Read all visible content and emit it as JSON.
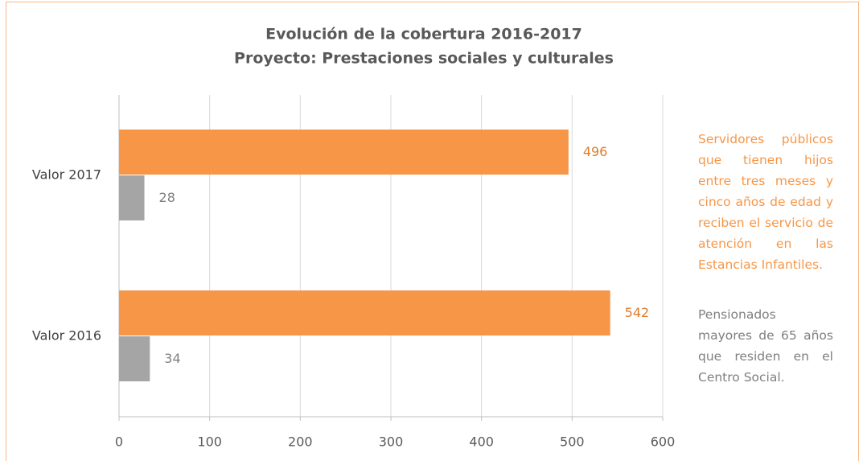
{
  "chart_data": {
    "type": "bar",
    "orientation": "horizontal",
    "title": "Evolución de la cobertura 2016-2017",
    "subtitle": "Proyecto: Prestaciones sociales y culturales",
    "categories": [
      "Valor 2017",
      "Valor 2016"
    ],
    "series": [
      {
        "name": "Servidores públicos que tienen hijos entre tres meses y cinco años de edad y reciben el servicio de atención en las Estancias Infantiles.",
        "color": "#f79646",
        "label_color": "#e07b2a",
        "values": [
          496,
          542
        ]
      },
      {
        "name": "Pensionados mayores de 65 años que residen en el Centro Social.",
        "color": "#a5a5a5",
        "label_color": "#7f7f7f",
        "values": [
          28,
          34
        ]
      }
    ],
    "xlim": [
      0,
      600
    ],
    "xticks": [
      0,
      100,
      200,
      300,
      400,
      500,
      600
    ],
    "grid": true,
    "legend": "right"
  }
}
